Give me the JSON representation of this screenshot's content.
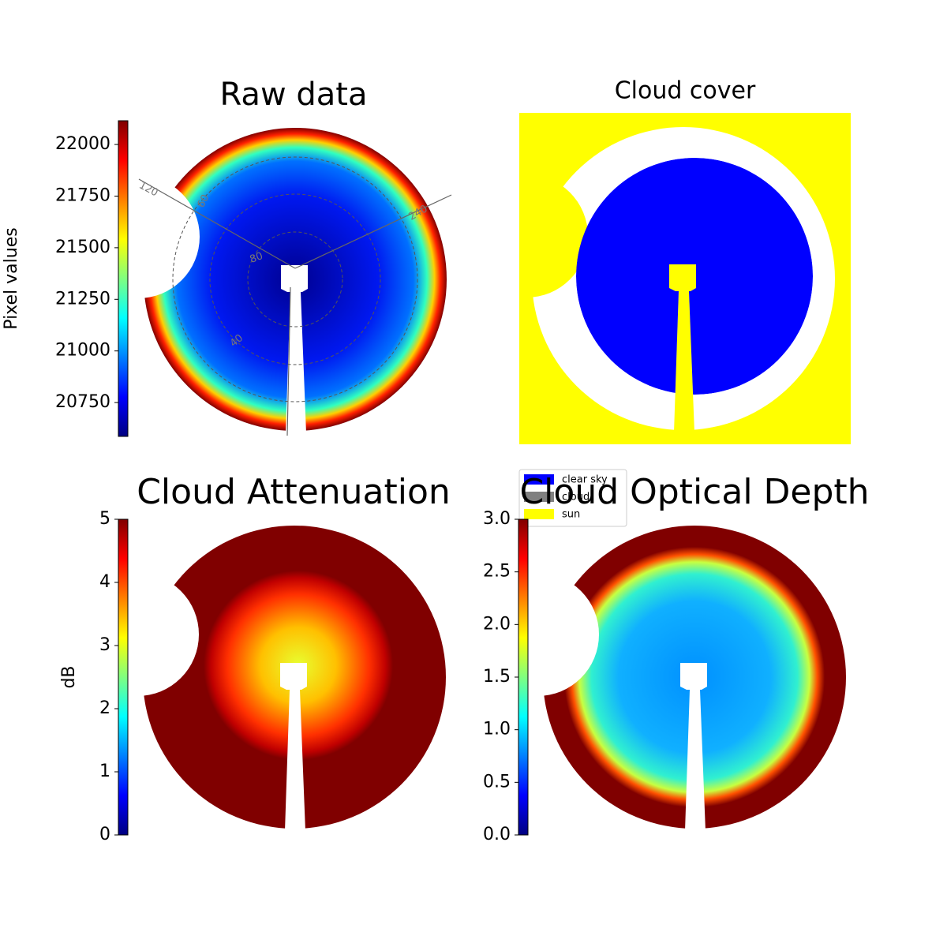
{
  "chart_data": [
    {
      "type": "image",
      "title": "Raw data",
      "colormap": "jet",
      "colorbar_label": "Pixel values",
      "ylim": [
        20586,
        22115
      ],
      "yticks": [
        20750,
        21000,
        21250,
        21500,
        21750,
        22000
      ],
      "annotations": [
        "120",
        "60",
        "240",
        "80",
        "40"
      ]
    },
    {
      "type": "image",
      "title": "Cloud cover",
      "series": [
        {
          "name": "clear sky",
          "color": "#0000ff"
        },
        {
          "name": "cloud",
          "color": "#808080"
        },
        {
          "name": "sun",
          "color": "#ffff00"
        }
      ]
    },
    {
      "type": "image",
      "title": "Cloud Attenuation",
      "colormap": "jet",
      "colorbar_label": "dB",
      "ylim": [
        0,
        5
      ],
      "yticks": [
        0,
        1,
        2,
        3,
        4,
        5
      ]
    },
    {
      "type": "image",
      "title": "Cloud Optical Depth",
      "colormap": "jet",
      "ylim": [
        0,
        3
      ],
      "yticks": [
        {
          "value": 0,
          "label": "0.0"
        },
        {
          "value": 0.5,
          "label": "0.5"
        },
        {
          "value": 1,
          "label": "1.0"
        },
        {
          "value": 1.5,
          "label": "1.5"
        },
        {
          "value": 2,
          "label": "2.0"
        },
        {
          "value": 2.5,
          "label": "2.5"
        },
        {
          "value": 3,
          "label": "3.0"
        }
      ]
    }
  ]
}
